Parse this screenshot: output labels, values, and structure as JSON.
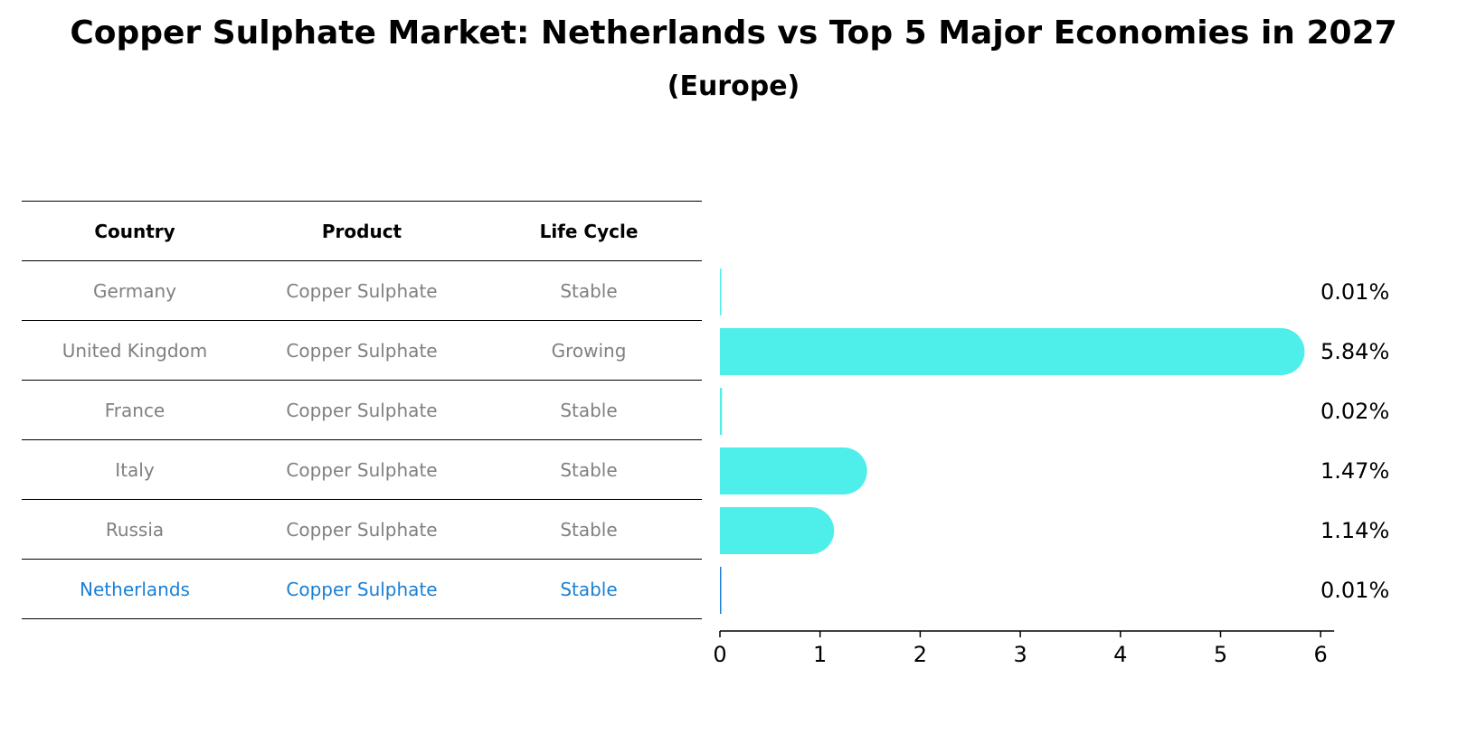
{
  "title": "Copper Sulphate Market: Netherlands vs Top 5 Major Economies in 2027",
  "subtitle": "(Europe)",
  "table": {
    "headers": [
      "Country",
      "Product",
      "Life Cycle"
    ],
    "rows": [
      {
        "country": "Germany",
        "product": "Copper Sulphate",
        "life_cycle": "Stable"
      },
      {
        "country": "United Kingdom",
        "product": "Copper Sulphate",
        "life_cycle": "Growing"
      },
      {
        "country": "France",
        "product": "Copper Sulphate",
        "life_cycle": "Stable"
      },
      {
        "country": "Italy",
        "product": "Copper Sulphate",
        "life_cycle": "Stable"
      },
      {
        "country": "Russia",
        "product": "Copper Sulphate",
        "life_cycle": "Stable"
      },
      {
        "country": "Netherlands",
        "product": "Copper Sulphate",
        "life_cycle": "Stable"
      }
    ]
  },
  "chart_data": {
    "type": "bar",
    "orientation": "horizontal",
    "categories": [
      "Germany",
      "United Kingdom",
      "France",
      "Italy",
      "Russia",
      "Netherlands"
    ],
    "values": [
      0.01,
      5.84,
      0.02,
      1.47,
      1.14,
      0.01
    ],
    "value_labels": [
      "0.01%",
      "5.84%",
      "0.02%",
      "1.47%",
      "1.14%",
      "0.01%"
    ],
    "highlight_category": "Netherlands",
    "xlim": [
      0,
      6
    ],
    "xticks": [
      "0",
      "1",
      "2",
      "3",
      "4",
      "5",
      "6"
    ],
    "grid": false,
    "colors": {
      "bar": "#4eeeea",
      "highlight": "#1a7fd4",
      "axis": "#000000"
    }
  }
}
